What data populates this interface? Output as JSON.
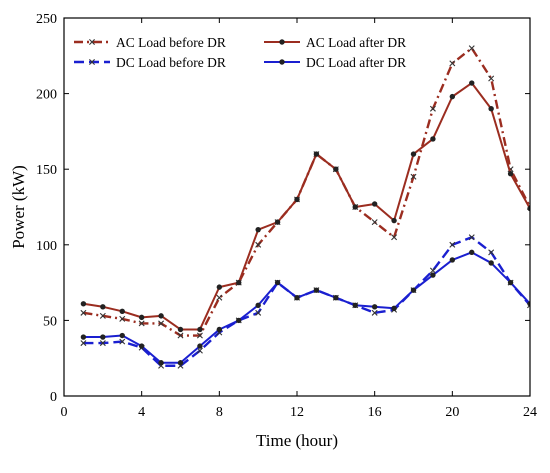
{
  "chart_data": {
    "type": "line",
    "xlabel": "Time (hour)",
    "ylabel": "Power (kW)",
    "xlim": [
      0,
      24
    ],
    "ylim": [
      0,
      250
    ],
    "xticks": [
      0,
      4,
      8,
      12,
      16,
      20,
      24
    ],
    "yticks": [
      0,
      50,
      100,
      150,
      200,
      250
    ],
    "grid": false,
    "legend_position": "top-left",
    "x": [
      1,
      2,
      3,
      4,
      5,
      6,
      7,
      8,
      9,
      10,
      11,
      12,
      13,
      14,
      15,
      16,
      17,
      18,
      19,
      20,
      21,
      22,
      23,
      24
    ],
    "series": [
      {
        "name": "AC Load before DR",
        "color": "#9b2d20",
        "line_style": "dash-dot",
        "marker": "x",
        "values": [
          55,
          53,
          51,
          48,
          48,
          40,
          40,
          65,
          75,
          100,
          115,
          130,
          160,
          150,
          125,
          115,
          105,
          145,
          190,
          220,
          230,
          210,
          150,
          125
        ]
      },
      {
        "name": "AC Load after DR",
        "color": "#9b2d20",
        "line_style": "solid",
        "marker": "dot",
        "values": [
          61,
          59,
          56,
          52,
          53,
          44,
          44,
          72,
          75,
          110,
          115,
          130,
          160,
          150,
          125,
          127,
          116,
          160,
          170,
          198,
          207,
          190,
          147,
          124
        ]
      },
      {
        "name": "DC Load before DR",
        "color": "#1a1fd0",
        "line_style": "dashed",
        "marker": "x",
        "values": [
          35,
          35,
          36,
          32,
          20,
          20,
          30,
          42,
          50,
          55,
          75,
          65,
          70,
          65,
          60,
          55,
          57,
          70,
          83,
          100,
          105,
          95,
          75,
          60
        ]
      },
      {
        "name": "DC Load after DR",
        "color": "#1a1fd0",
        "line_style": "solid",
        "marker": "dot",
        "values": [
          39,
          39,
          40,
          33,
          22,
          22,
          33,
          44,
          50,
          60,
          75,
          65,
          70,
          65,
          60,
          59,
          58,
          70,
          80,
          90,
          95,
          88,
          75,
          61
        ]
      }
    ]
  }
}
